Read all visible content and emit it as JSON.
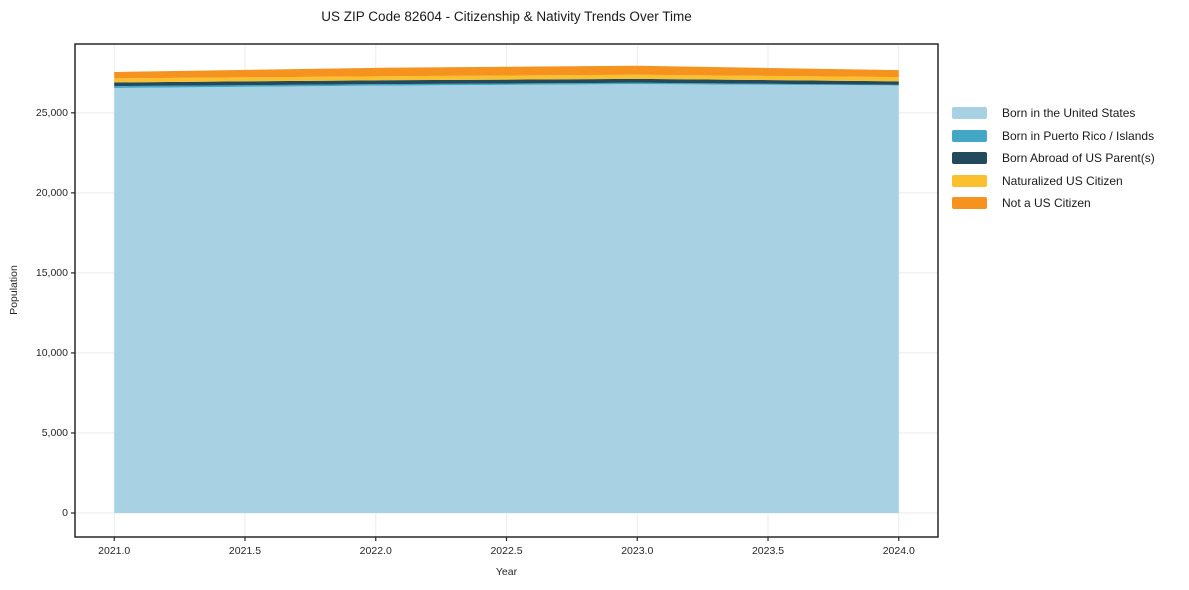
{
  "figure": {
    "title": "US ZIP Code 82604 - Citizenship & Nativity Trends Over Time"
  },
  "chart_data": {
    "type": "area",
    "stacked": true,
    "title": "US ZIP Code 82604 - Citizenship & Nativity Trends Over Time",
    "xlabel": "Year",
    "ylabel": "Population",
    "x": [
      2021,
      2022,
      2023,
      2024
    ],
    "series": [
      {
        "name": "Born in the United States",
        "color": "#a8d2e4",
        "values": [
          26550,
          26700,
          26790,
          26710
        ]
      },
      {
        "name": "Born in Puerto Rico / Islands",
        "color": "#41a7c5",
        "values": [
          120,
          90,
          90,
          40
        ]
      },
      {
        "name": "Born Abroad of US Parent(s)",
        "color": "#224a5c",
        "values": [
          230,
          240,
          240,
          220
        ]
      },
      {
        "name": "Naturalized US Citizen",
        "color": "#fbc02d",
        "values": [
          250,
          250,
          260,
          260
        ]
      },
      {
        "name": "Not a US Citizen",
        "color": "#f6921e",
        "values": [
          400,
          530,
          560,
          440
        ]
      }
    ],
    "totals": [
      27550,
      27810,
      27940,
      27670
    ],
    "xticks": {
      "values": [
        2021.0,
        2021.5,
        2022.0,
        2022.5,
        2023.0,
        2023.5,
        2024.0
      ],
      "labels": [
        "2021.0",
        "2021.5",
        "2022.0",
        "2022.5",
        "2023.0",
        "2023.5",
        "2024.0"
      ]
    },
    "yticks": {
      "values": [
        0,
        5000,
        10000,
        15000,
        20000,
        25000
      ],
      "labels": [
        "0",
        "5,000",
        "10,000",
        "15,000",
        "20,000",
        "25,000"
      ]
    },
    "xlim": [
      2020.85,
      2024.15
    ],
    "ylim": [
      -1500,
      29300
    ],
    "grid": true,
    "grid_color": "#ebebeb",
    "frame_color": "#1a1a1a",
    "tick_color": "#262626",
    "legend_position": "right"
  }
}
